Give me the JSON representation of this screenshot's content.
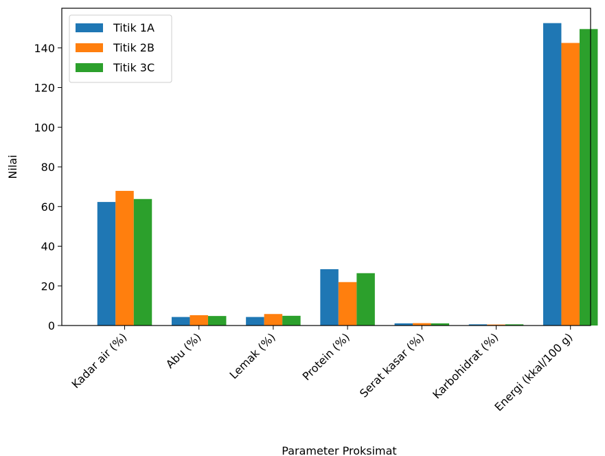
{
  "chart_data": {
    "type": "bar",
    "title": "",
    "xlabel": "Parameter Proksimat",
    "ylabel": "Nilai",
    "categories": [
      "Kadar air (%)",
      "Abu (%)",
      "Lemak (%)",
      "Protein (%)",
      "Serat kasar (%)",
      "Karbohidrat (%)",
      "Energi (kkal/100 g)"
    ],
    "series": [
      {
        "name": "Titik 1A",
        "color": "#1f77b4",
        "values": [
          62.3,
          4.3,
          4.3,
          28.4,
          1.1,
          0.6,
          152.5
        ]
      },
      {
        "name": "Titik 2B",
        "color": "#ff7f0e",
        "values": [
          67.9,
          5.2,
          5.8,
          21.9,
          1.2,
          0.5,
          142.5
        ]
      },
      {
        "name": "Titik 3C",
        "color": "#2ca02c",
        "values": [
          63.8,
          4.8,
          4.9,
          26.4,
          1.1,
          0.6,
          149.5
        ]
      }
    ],
    "ylim": [
      0,
      160
    ],
    "yticks": [
      0,
      20,
      40,
      60,
      80,
      100,
      120,
      140
    ],
    "grid": false,
    "legend_position": "top-left"
  }
}
